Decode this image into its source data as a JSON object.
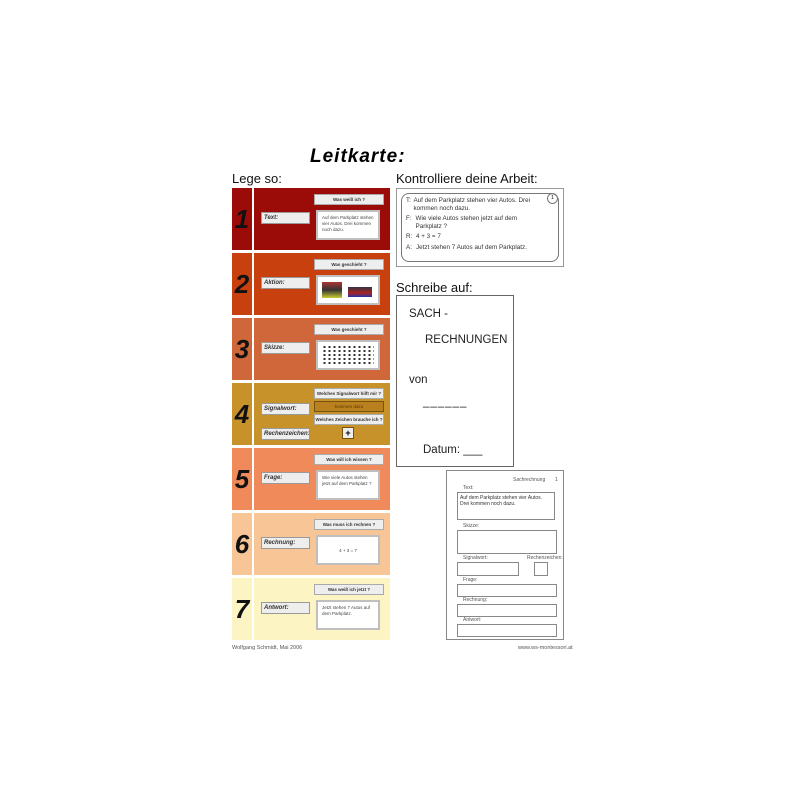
{
  "title": "Leitkarte:",
  "left_heading": "Lege so:",
  "steps": [
    {
      "num": "1",
      "label": "Text:",
      "question": "Was weiß ich ?",
      "answer": "Auf dem Parkplatz stehen vier Autos. Drei kommen noch dazu.",
      "color": "#9b0c08"
    },
    {
      "num": "2",
      "label": "Aktion:",
      "question": "Was geschieht ?",
      "answer": "",
      "color": "#c9400f"
    },
    {
      "num": "3",
      "label": "Skizze:",
      "question": "Was geschieht ?",
      "answer": "",
      "color": "#cf673a"
    },
    {
      "num": "4",
      "label": "Signalwort:",
      "label2": "Rechenzeichen:",
      "question": "Welches Signalwort hilft mir ?",
      "answer": "kommen dazu",
      "question2": "Welches Zeichen brauche ich ?",
      "answer2": "+",
      "color": "#c8922a"
    },
    {
      "num": "5",
      "label": "Frage:",
      "question": "Was will ich wissen ?",
      "answer": "Wie viele Autos stehen jetzt auf dem Parkplatz ?",
      "color": "#f08a5a"
    },
    {
      "num": "6",
      "label": "Rechnung:",
      "question": "Was muss ich rechnen ?",
      "answer": "4 + 3 = 7",
      "color": "#f8c696"
    },
    {
      "num": "7",
      "label": "Antwort:",
      "question": "Was weiß ich jetzt ?",
      "answer": "Jetzt stehen 7 Autos auf dem Parkplatz.",
      "color": "#fcf4c2"
    }
  ],
  "check": {
    "heading": "Kontrolliere deine Arbeit:",
    "badge": "1",
    "lines": [
      {
        "k": "T:",
        "v": "Auf dem Parkplatz stehen vier Autos. Drei kommen noch dazu."
      },
      {
        "k": "F:",
        "v": "Wie viele Autos stehen jetzt auf dem Parkplatz ?"
      },
      {
        "k": "R:",
        "v": "4 + 3 = 7"
      },
      {
        "k": "A:",
        "v": "Jetzt stehen 7 Autos auf dem Parkplatz."
      }
    ]
  },
  "write": {
    "heading": "Schreibe auf:",
    "line1": "SACH -",
    "line2": "RECHNUNGEN",
    "von": "von",
    "blank": "______",
    "datum": "Datum: ___"
  },
  "sheet": {
    "header": "Sachrechnung",
    "page": "1",
    "text_label": "Text:",
    "text": "Auf dem Parkplatz stehen vier Autos. Drei kommen noch dazu.",
    "skizze": "Skizze:",
    "signalwort": "Signalwort:",
    "rechenzeichen": "Rechenzeichen:",
    "frage": "Frage:",
    "rechnung": "Rechnung:",
    "antwort": "Antwort:"
  },
  "footer": {
    "author": "Wolfgang Schmidt, Mai 2006",
    "url": "www.ws-montessori.at"
  }
}
